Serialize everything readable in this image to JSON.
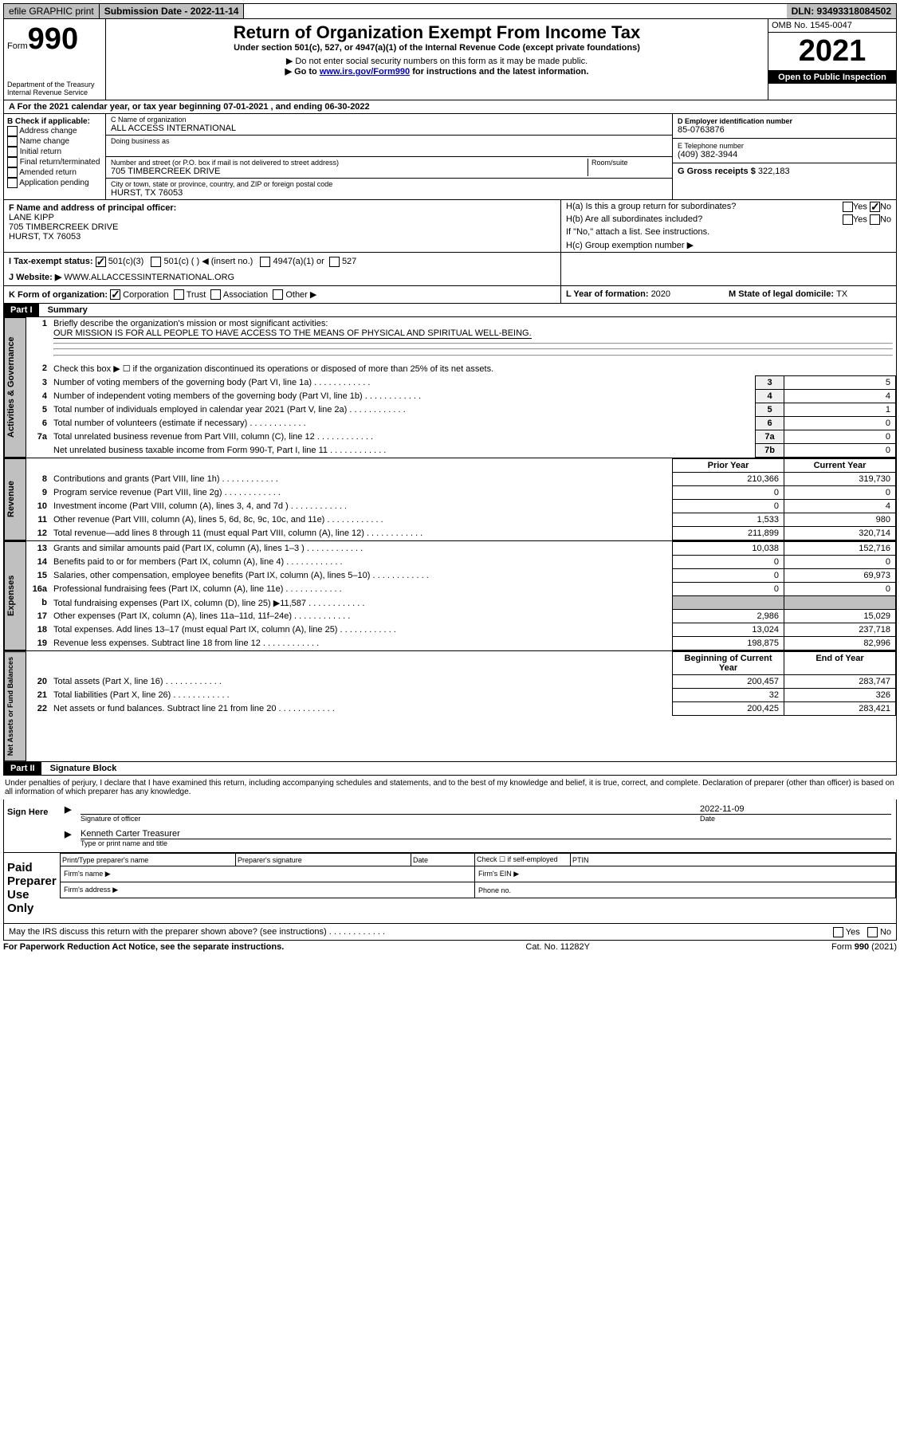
{
  "topbar": {
    "efile": "efile GRAPHIC print",
    "subdate_label": "Submission Date - 2022-11-14",
    "dln": "DLN: 93493318084502"
  },
  "header": {
    "form_label": "Form",
    "form_num": "990",
    "dept": "Department of the Treasury",
    "irs": "Internal Revenue Service",
    "title": "Return of Organization Exempt From Income Tax",
    "subtitle": "Under section 501(c), 527, or 4947(a)(1) of the Internal Revenue Code (except private foundations)",
    "warn1": "▶ Do not enter social security numbers on this form as it may be made public.",
    "warn2_a": "▶ Go to ",
    "warn2_link": "www.irs.gov/Form990",
    "warn2_b": " for instructions and the latest information.",
    "omb": "OMB No. 1545-0047",
    "year": "2021",
    "inspect": "Open to Public Inspection"
  },
  "rowA": {
    "text_a": "A For the 2021 calendar year, or tax year beginning ",
    "begin": "07-01-2021",
    "text_b": " , and ending ",
    "end": "06-30-2022"
  },
  "sectionB": {
    "label": "B Check if applicable:",
    "opts": [
      "Address change",
      "Name change",
      "Initial return",
      "Final return/terminated",
      "Amended return",
      "Application pending"
    ]
  },
  "sectionC": {
    "name_label": "C Name of organization",
    "name": "ALL ACCESS INTERNATIONAL",
    "dba_label": "Doing business as",
    "addr_label": "Number and street (or P.O. box if mail is not delivered to street address)",
    "room_label": "Room/suite",
    "addr": "705 TIMBERCREEK DRIVE",
    "city_label": "City or town, state or province, country, and ZIP or foreign postal code",
    "city": "HURST, TX  76053"
  },
  "sectionDE": {
    "d_label": "D Employer identification number",
    "ein": "85-0763876",
    "e_label": "E Telephone number",
    "phone": "(409) 382-3944",
    "g_label": "G Gross receipts $",
    "gross": "322,183"
  },
  "sectionF": {
    "label": "F Name and address of principal officer:",
    "name": "LANE KIPP",
    "addr1": "705 TIMBERCREEK DRIVE",
    "addr2": "HURST, TX  76053"
  },
  "sectionH": {
    "ha": "H(a)  Is this a group return for subordinates?",
    "hb": "H(b)  Are all subordinates included?",
    "hb_note": "If \"No,\" attach a list. See instructions.",
    "hc": "H(c)  Group exemption number ▶",
    "yes": "Yes",
    "no": "No"
  },
  "rowI": {
    "label": "I   Tax-exempt status:",
    "opts": [
      "501(c)(3)",
      "501(c) (   ) ◀ (insert no.)",
      "4947(a)(1) or",
      "527"
    ]
  },
  "rowJ": {
    "label": "J   Website: ▶",
    "value": " WWW.ALLACCESSINTERNATIONAL.ORG"
  },
  "rowK": {
    "label": "K Form of organization:",
    "opts": [
      "Corporation",
      "Trust",
      "Association",
      "Other ▶"
    ],
    "l_label": "L Year of formation: ",
    "l_val": "2020",
    "m_label": "M State of legal domicile: ",
    "m_val": "TX"
  },
  "part1": {
    "hdr": "Part I",
    "title": "Summary",
    "line1_label": "Briefly describe the organization's mission or most significant activities:",
    "line1_text": "OUR MISSION IS FOR ALL PEOPLE TO HAVE ACCESS TO THE MEANS OF PHYSICAL AND SPIRITUAL WELL-BEING.",
    "line2": "Check this box ▶ ☐  if the organization discontinued its operations or disposed of more than 25% of its net assets.",
    "tabs": {
      "gov": "Activities & Governance",
      "rev": "Revenue",
      "exp": "Expenses",
      "net": "Net Assets or Fund Balances"
    },
    "prior": "Prior Year",
    "current": "Current Year",
    "begin": "Beginning of Current Year",
    "end": "End of Year",
    "rows_gov": [
      {
        "n": "3",
        "d": "Number of voting members of the governing body (Part VI, line 1a)",
        "box": "3",
        "v": "5"
      },
      {
        "n": "4",
        "d": "Number of independent voting members of the governing body (Part VI, line 1b)",
        "box": "4",
        "v": "4"
      },
      {
        "n": "5",
        "d": "Total number of individuals employed in calendar year 2021 (Part V, line 2a)",
        "box": "5",
        "v": "1"
      },
      {
        "n": "6",
        "d": "Total number of volunteers (estimate if necessary)",
        "box": "6",
        "v": "0"
      },
      {
        "n": "7a",
        "d": "Total unrelated business revenue from Part VIII, column (C), line 12",
        "box": "7a",
        "v": "0"
      },
      {
        "n": "",
        "d": "Net unrelated business taxable income from Form 990-T, Part I, line 11",
        "box": "7b",
        "v": "0"
      }
    ],
    "rows_rev": [
      {
        "n": "8",
        "d": "Contributions and grants (Part VIII, line 1h)",
        "p": "210,366",
        "c": "319,730"
      },
      {
        "n": "9",
        "d": "Program service revenue (Part VIII, line 2g)",
        "p": "0",
        "c": "0"
      },
      {
        "n": "10",
        "d": "Investment income (Part VIII, column (A), lines 3, 4, and 7d )",
        "p": "0",
        "c": "4"
      },
      {
        "n": "11",
        "d": "Other revenue (Part VIII, column (A), lines 5, 6d, 8c, 9c, 10c, and 11e)",
        "p": "1,533",
        "c": "980"
      },
      {
        "n": "12",
        "d": "Total revenue—add lines 8 through 11 (must equal Part VIII, column (A), line 12)",
        "p": "211,899",
        "c": "320,714"
      }
    ],
    "rows_exp": [
      {
        "n": "13",
        "d": "Grants and similar amounts paid (Part IX, column (A), lines 1–3 )",
        "p": "10,038",
        "c": "152,716"
      },
      {
        "n": "14",
        "d": "Benefits paid to or for members (Part IX, column (A), line 4)",
        "p": "0",
        "c": "0"
      },
      {
        "n": "15",
        "d": "Salaries, other compensation, employee benefits (Part IX, column (A), lines 5–10)",
        "p": "0",
        "c": "69,973"
      },
      {
        "n": "16a",
        "d": "Professional fundraising fees (Part IX, column (A), line 11e)",
        "p": "0",
        "c": "0"
      },
      {
        "n": "b",
        "d": "Total fundraising expenses (Part IX, column (D), line 25) ▶11,587",
        "p": "",
        "c": "",
        "shaded": true
      },
      {
        "n": "17",
        "d": "Other expenses (Part IX, column (A), lines 11a–11d, 11f–24e)",
        "p": "2,986",
        "c": "15,029"
      },
      {
        "n": "18",
        "d": "Total expenses. Add lines 13–17 (must equal Part IX, column (A), line 25)",
        "p": "13,024",
        "c": "237,718"
      },
      {
        "n": "19",
        "d": "Revenue less expenses. Subtract line 18 from line 12",
        "p": "198,875",
        "c": "82,996"
      }
    ],
    "rows_net": [
      {
        "n": "20",
        "d": "Total assets (Part X, line 16)",
        "p": "200,457",
        "c": "283,747"
      },
      {
        "n": "21",
        "d": "Total liabilities (Part X, line 26)",
        "p": "32",
        "c": "326"
      },
      {
        "n": "22",
        "d": "Net assets or fund balances. Subtract line 21 from line 20",
        "p": "200,425",
        "c": "283,421"
      }
    ]
  },
  "part2": {
    "hdr": "Part II",
    "title": "Signature Block",
    "penalty": "Under penalties of perjury, I declare that I have examined this return, including accompanying schedules and statements, and to the best of my knowledge and belief, it is true, correct, and complete. Declaration of preparer (other than officer) is based on all information of which preparer has any knowledge.",
    "sign_here": "Sign Here",
    "sig_officer": "Signature of officer",
    "sig_date_label": "Date",
    "sig_date": "2022-11-09",
    "sig_name": "Kenneth Carter Treasurer",
    "sig_name_label": "Type or print name and title",
    "paid": "Paid Preparer Use Only",
    "prep_name": "Print/Type preparer's name",
    "prep_sig": "Preparer's signature",
    "prep_date": "Date",
    "self_emp": "Check ☐ if self-employed",
    "ptin": "PTIN",
    "firm_name": "Firm's name    ▶",
    "firm_ein": "Firm's EIN ▶",
    "firm_addr": "Firm's address ▶",
    "phone": "Phone no."
  },
  "footer": {
    "discuss": "May the IRS discuss this return with the preparer shown above? (see instructions)",
    "paperwork": "For Paperwork Reduction Act Notice, see the separate instructions.",
    "cat": "Cat. No. 11282Y",
    "form": "Form 990 (2021)"
  }
}
